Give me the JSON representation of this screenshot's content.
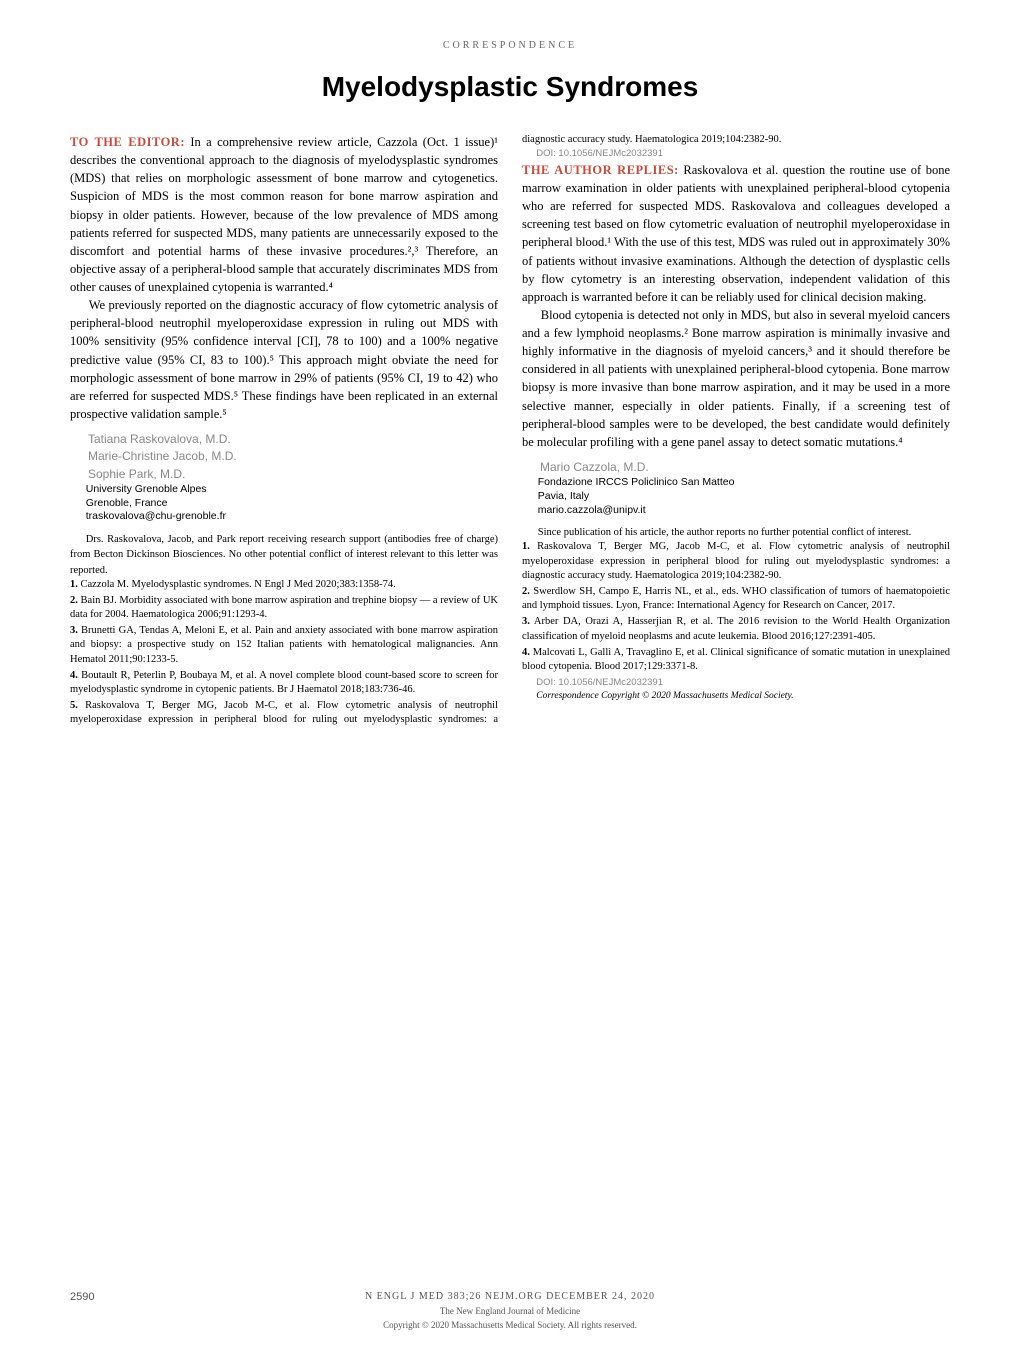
{
  "header": {
    "section_label": "CORRESPONDENCE"
  },
  "article": {
    "title": "Myelodysplastic Syndromes"
  },
  "letter": {
    "editor_label": "TO THE EDITOR:",
    "para1": "In a comprehensive review article, Cazzola (Oct. 1 issue)¹ describes the conventional approach to the diagnosis of myelodysplastic syndromes (MDS) that relies on morphologic assessment of bone marrow and cytogenetics. Suspicion of MDS is the most common reason for bone marrow aspiration and biopsy in older patients. However, because of the low prevalence of MDS among patients referred for suspected MDS, many patients are unnecessarily exposed to the discomfort and potential harms of these invasive procedures.²,³ Therefore, an objective assay of a peripheral-blood sample that accurately discriminates MDS from other causes of unexplained cytopenia is warranted.⁴",
    "para2": "We previously reported on the diagnostic accuracy of flow cytometric analysis of peripheral-blood neutrophil myeloperoxidase expression in ruling out MDS with 100% sensitivity (95% confidence interval [CI], 78 to 100) and a 100% negative predictive value (95% CI, 83 to 100).⁵ This approach might obviate the need for morphologic assessment of bone marrow in 29% of patients (95% CI, 19 to 42) who are referred for suspected MDS.⁵ These findings have been replicated in an external prospective validation sample.⁵",
    "authors": [
      "Tatiana Raskovalova, M.D.",
      "Marie-Christine Jacob, M.D.",
      "Sophie Park, M.D."
    ],
    "affiliation_lines": [
      "University Grenoble Alpes",
      "Grenoble, France",
      "traskovalova@chu-grenoble.fr"
    ],
    "disclosure": "Drs. Raskovalova, Jacob, and Park report receiving research support (antibodies free of charge) from Becton Dickinson Biosciences. No other potential conflict of interest relevant to this letter was reported.",
    "references": [
      {
        "num": "1.",
        "text": "Cazzola M. Myelodysplastic syndromes. N Engl J Med 2020;383:1358-74."
      },
      {
        "num": "2.",
        "text": "Bain BJ. Morbidity associated with bone marrow aspiration and trephine biopsy — a review of UK data for 2004. Haematologica 2006;91:1293-4."
      },
      {
        "num": "3.",
        "text": "Brunetti GA, Tendas A, Meloni E, et al. Pain and anxiety associated with bone marrow aspiration and biopsy: a prospective study on 152 Italian patients with hematological malignancies. Ann Hematol 2011;90:1233-5."
      },
      {
        "num": "4.",
        "text": "Boutault R, Peterlin P, Boubaya M, et al. A novel complete blood count-based score to screen for myelodysplastic syndrome in cytopenic patients. Br J Haematol 2018;183:736-46."
      },
      {
        "num": "5.",
        "text": "Raskovalova T, Berger MG, Jacob M-C, et al. Flow cytometric analysis of neutrophil myeloperoxidase expression in peripheral blood for ruling out myelodysplastic syndromes: a diagnostic accuracy study. Haematologica 2019;104:2382-90."
      }
    ],
    "doi": "DOI: 10.1056/NEJMc2032391"
  },
  "reply": {
    "reply_label": "THE AUTHOR REPLIES:",
    "para1": "Raskovalova et al. question the routine use of bone marrow examination in older patients with unexplained peripheral-blood cytopenia who are referred for suspected MDS. Raskovalova and colleagues developed a screening test based on flow cytometric evaluation of neutrophil myeloperoxidase in peripheral blood.¹ With the use of this test, MDS was ruled out in approximately 30% of patients without invasive examinations. Although the detection of dysplastic cells by flow cytometry is an interesting observation, independent validation of this approach is warranted before it can be reliably used for clinical decision making.",
    "para2": "Blood cytopenia is detected not only in MDS, but also in several myeloid cancers and a few lymphoid neoplasms.² Bone marrow aspiration is minimally invasive and highly informative in the diagnosis of myeloid cancers,³ and it should therefore be considered in all patients with unexplained peripheral-blood cytopenia. Bone marrow biopsy is more invasive than bone marrow aspiration, and it may be used in a more selective manner, especially in older patients. Finally, if a screening test of peripheral-blood samples were to be developed, the best candidate would definitely be molecular profiling with a gene panel assay to detect somatic mutations.⁴",
    "author": "Mario Cazzola, M.D.",
    "affiliation_lines": [
      "Fondazione IRCCS Policlinico San Matteo",
      "Pavia, Italy",
      "mario.cazzola@unipv.it"
    ],
    "disclosure": "Since publication of his article, the author reports no further potential conflict of interest.",
    "references": [
      {
        "num": "1.",
        "text": "Raskovalova T, Berger MG, Jacob M-C, et al. Flow cytometric analysis of neutrophil myeloperoxidase expression in peripheral blood for ruling out myelodysplastic syndromes: a diagnostic accuracy study. Haematologica 2019;104:2382-90."
      },
      {
        "num": "2.",
        "text": "Swerdlow SH, Campo E, Harris NL, et al., eds. WHO classification of tumors of haematopoietic and lymphoid tissues. Lyon, France: International Agency for Research on Cancer, 2017."
      },
      {
        "num": "3.",
        "text": "Arber DA, Orazi A, Hasserjian R, et al. The 2016 revision to the World Health Organization classification of myeloid neoplasms and acute leukemia. Blood 2016;127:2391-405."
      },
      {
        "num": "4.",
        "text": "Malcovati L, Gallì A, Travaglino E, et al. Clinical significance of somatic mutation in unexplained blood cytopenia. Blood 2017;129:3371-8."
      }
    ],
    "doi": "DOI: 10.1056/NEJMc2032391",
    "copyright": "Correspondence Copyright © 2020 Massachusetts Medical Society."
  },
  "footer": {
    "page_num": "2590",
    "line1": "N ENGL J MED 383;26   NEJM.ORG   DECEMBER 24, 2020",
    "line2": "The New England Journal of Medicine",
    "line3": "Copyright © 2020 Massachusetts Medical Society. All rights reserved."
  },
  "colors": {
    "accent": "#c94a3b",
    "text": "#000000",
    "muted": "#888888",
    "background": "#ffffff"
  }
}
